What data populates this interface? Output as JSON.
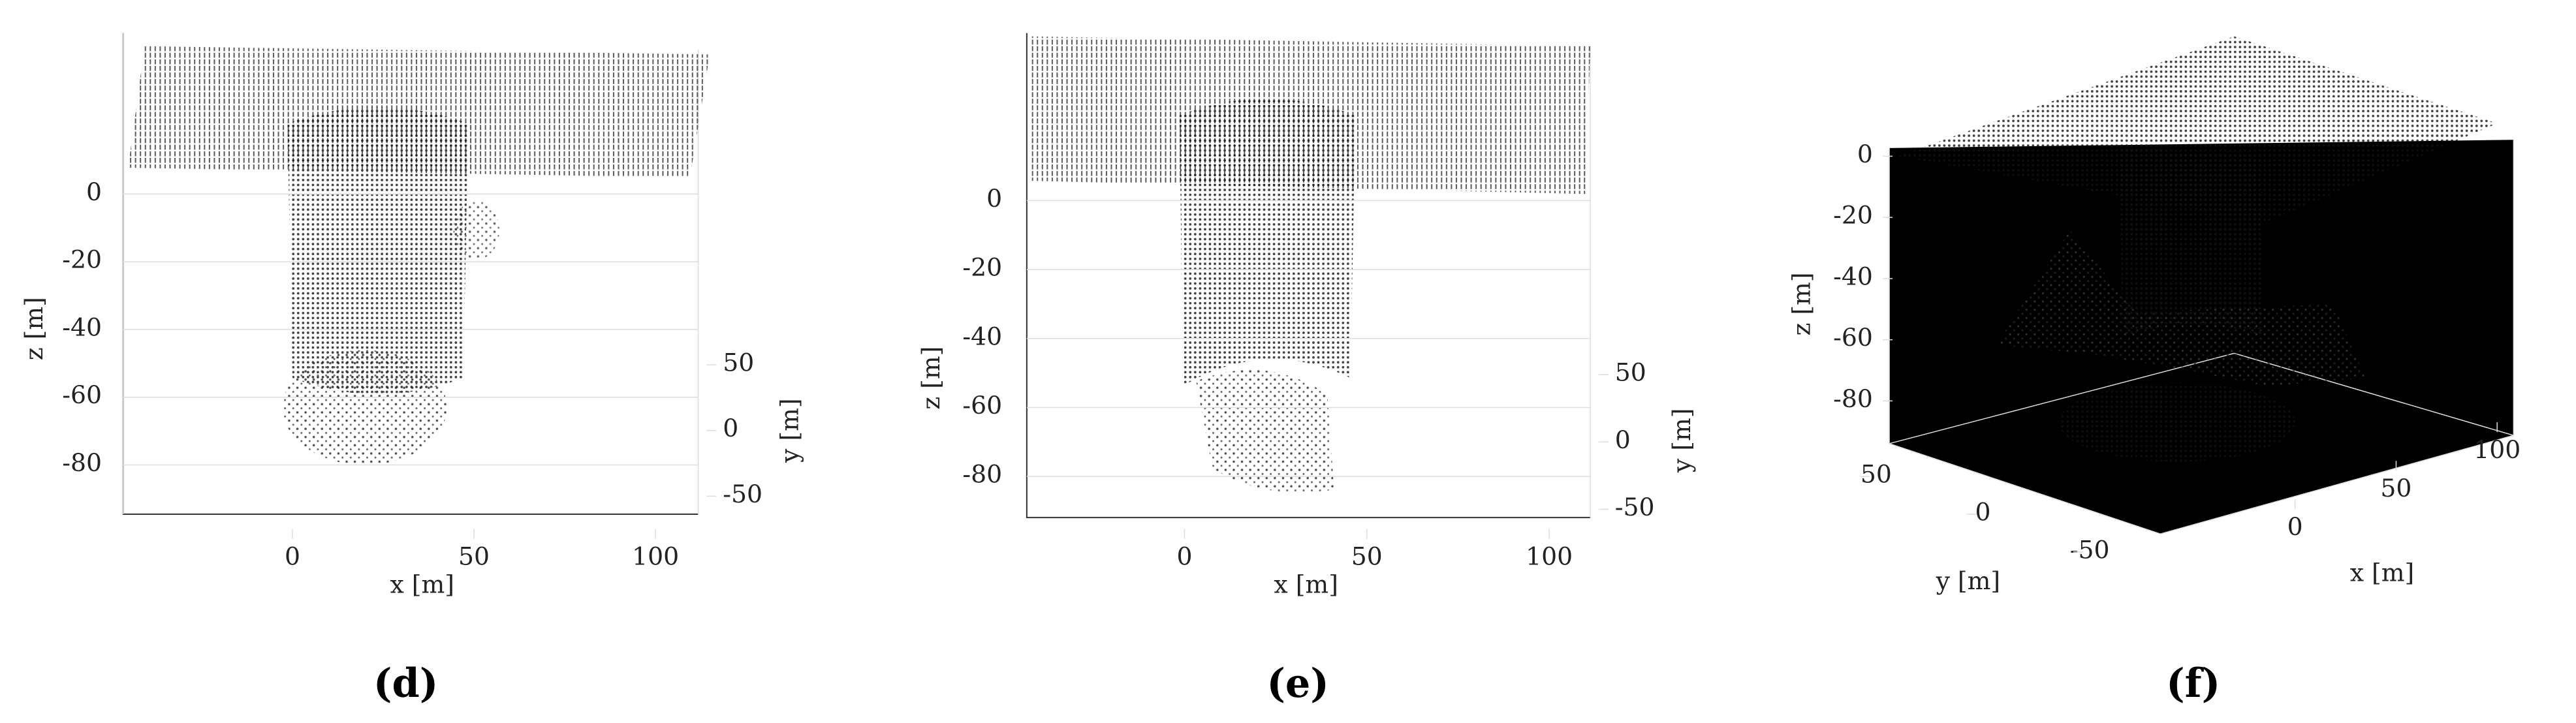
{
  "panels": [
    {
      "label": "(d)",
      "x_label": "x [m]",
      "y_label": "y [m]",
      "z_label": "z [m]",
      "x_ticks": [
        0,
        50,
        100
      ],
      "y_ticks": [
        50,
        0,
        -50
      ],
      "z_ticks": [
        0,
        -20,
        -40,
        -60,
        -80
      ]
    },
    {
      "label": "(e)",
      "x_label": "x [m]",
      "y_label": "y [m]",
      "z_label": "z [m]",
      "x_ticks": [
        0,
        50,
        100
      ],
      "y_ticks": [
        50,
        0,
        -50
      ],
      "z_ticks": [
        0,
        -20,
        -40,
        -60,
        -80
      ]
    },
    {
      "label": "(f)",
      "x_label": "x [m]",
      "y_label": "y [m]",
      "z_label": "z [m]",
      "x_ticks": [
        0,
        50,
        100
      ],
      "y_ticks": [
        50,
        0,
        -50
      ],
      "z_ticks": [
        0,
        -20,
        -40,
        -60,
        -80
      ]
    }
  ]
}
